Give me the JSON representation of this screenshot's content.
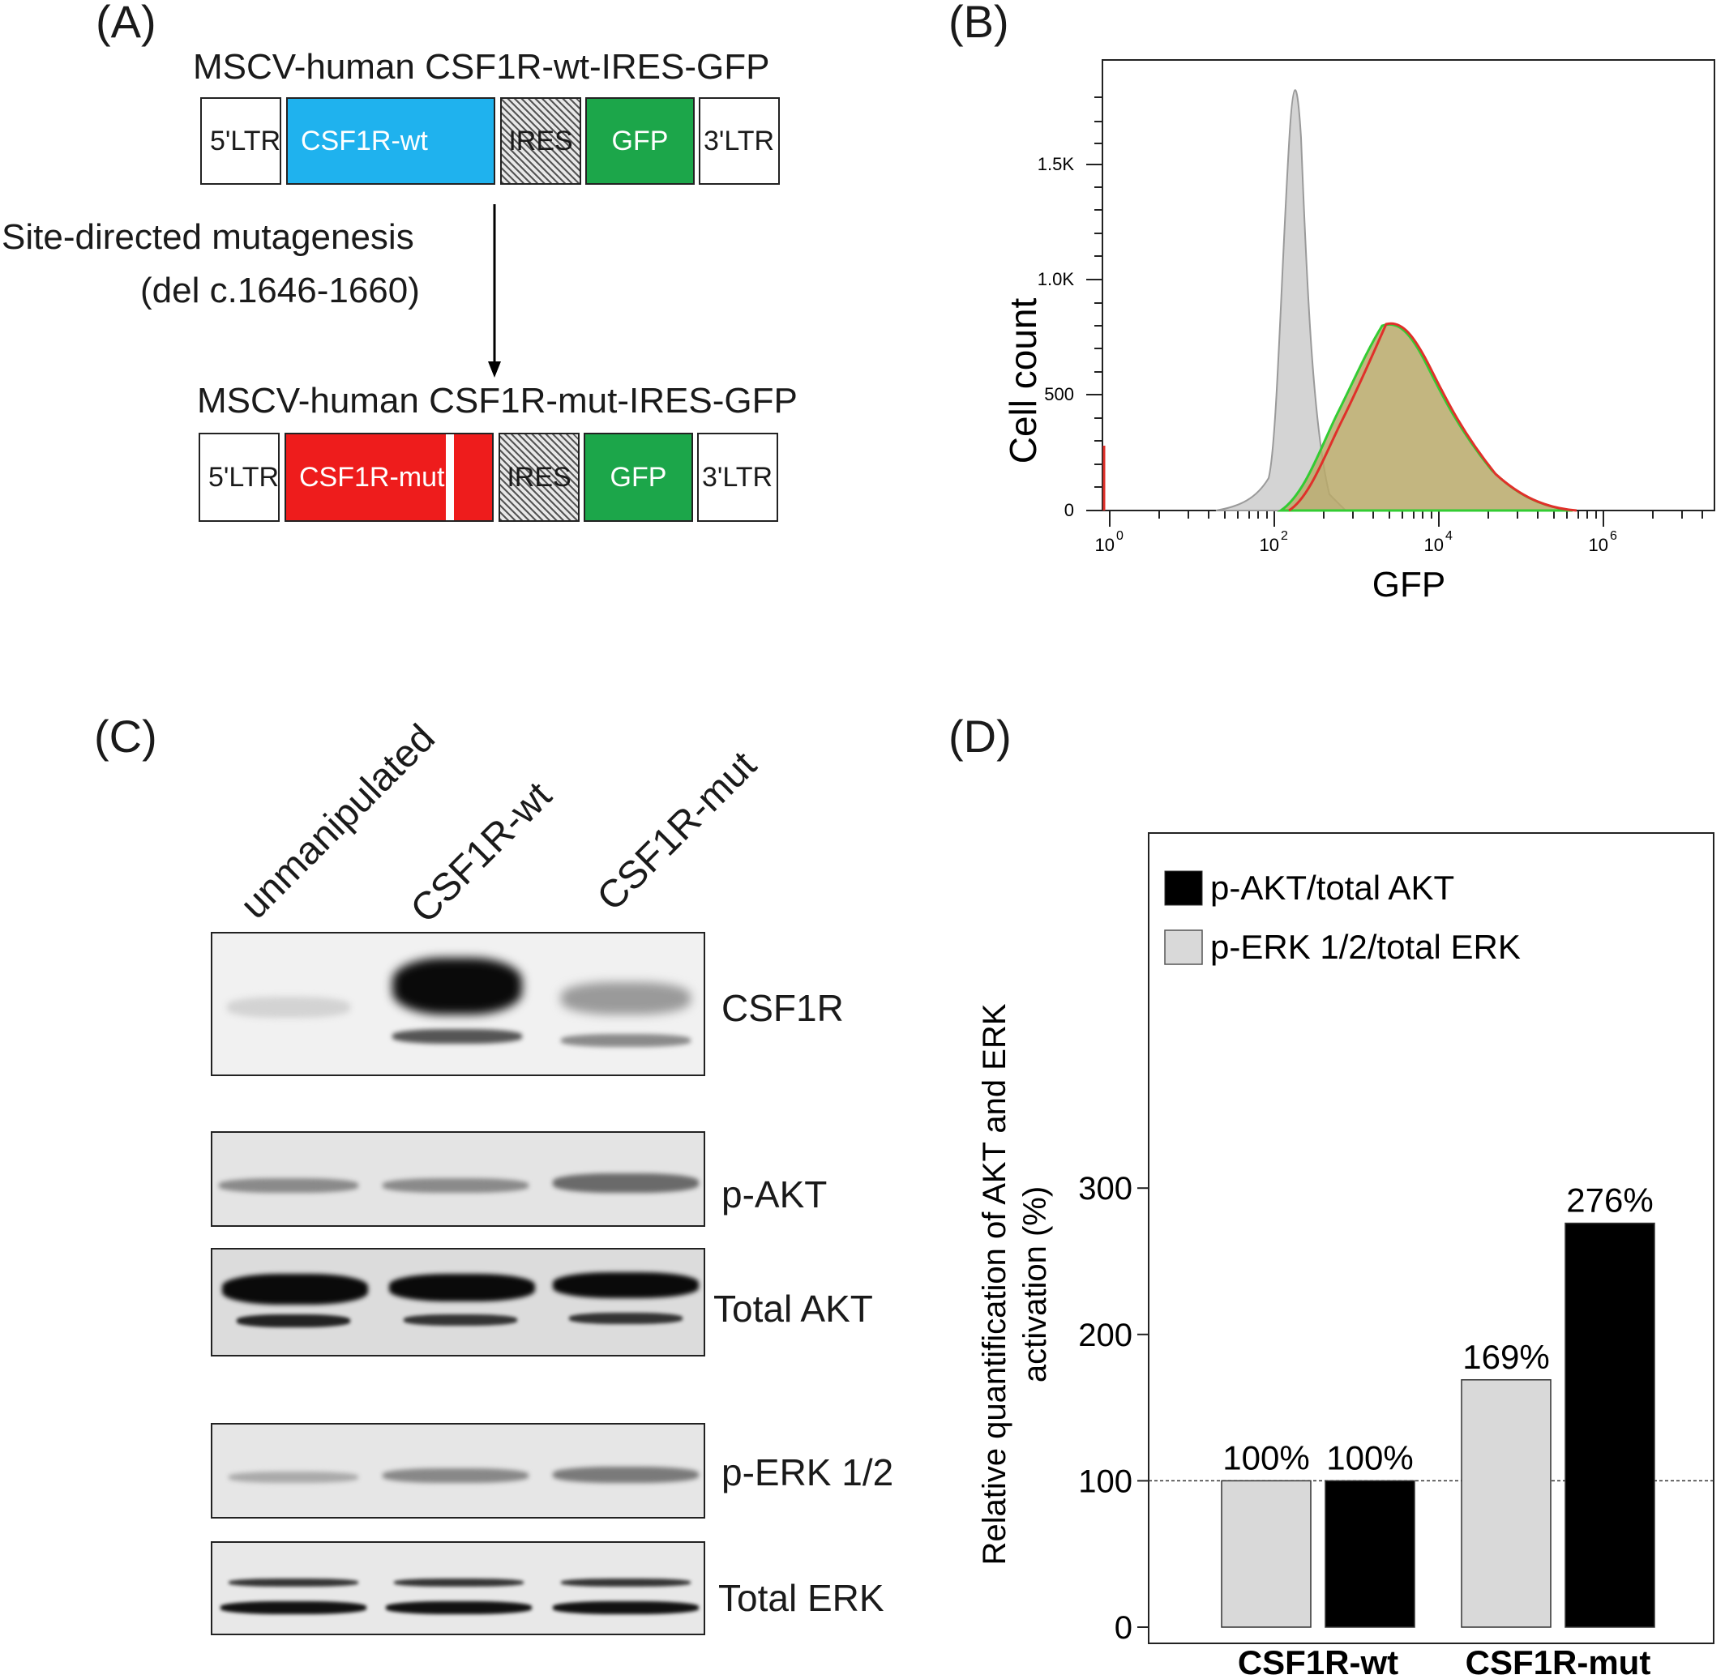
{
  "panels": {
    "a": "(A)",
    "b": "(B)",
    "c": "(C)",
    "d": "(D)"
  },
  "construct_wt": {
    "title": "MSCV-human CSF1R-wt-IRES-GFP",
    "ltr5": "5'LTR",
    "gene": "CSF1R-wt",
    "ires": "IRES",
    "gfp": "GFP",
    "ltr3": "3'LTR"
  },
  "mutagenesis": {
    "line1": "Site-directed mutagenesis",
    "line2": "(del c.1646-1660)"
  },
  "construct_mut": {
    "title": "MSCV-human CSF1R-mut-IRES-GFP",
    "ltr5": "5'LTR",
    "gene": "CSF1R-mut",
    "ires": "IRES",
    "gfp": "GFP",
    "ltr3": "3'LTR"
  },
  "colors": {
    "wt_gene": "#1fb2ee",
    "mut_gene": "#ee1c1c",
    "gfp": "#1ca64a",
    "bar_black": "#000000",
    "bar_gray": "#d9d9d9"
  },
  "flow": {
    "ylabel": "Cell count",
    "xlabel": "GFP",
    "yticks": [
      "0",
      "500",
      "1.0K",
      "1.5K"
    ],
    "xticks": [
      {
        "base": "10",
        "exp": "0"
      },
      {
        "base": "10",
        "exp": "2"
      },
      {
        "base": "10",
        "exp": "4"
      },
      {
        "base": "10",
        "exp": "6"
      }
    ]
  },
  "western": {
    "lanes": [
      "unmanipulated",
      "CSF1R-wt",
      "CSF1R-mut"
    ],
    "blots": [
      "CSF1R",
      "p-AKT",
      "Total AKT",
      "p-ERK 1/2",
      "Total ERK"
    ]
  },
  "chart_data": {
    "type": "bar",
    "categories": [
      "CSF1R-wt",
      "CSF1R-mut"
    ],
    "series": [
      {
        "name": "p-ERK 1/2/total ERK",
        "values": [
          100,
          169
        ],
        "labels": [
          "100%",
          "169%"
        ]
      },
      {
        "name": "p-AKT/total AKT",
        "values": [
          100,
          276
        ],
        "labels": [
          "100%",
          "276%"
        ]
      }
    ],
    "ylabel": "Relative quantification of AKT and ERK activation (%)",
    "ylabel_line1": "Relative quantification of AKT and ERK",
    "ylabel_line2": "activation (%)",
    "ylim": [
      0,
      370
    ],
    "yticks": [
      0,
      100,
      200,
      300
    ],
    "reference_line": 100,
    "legend": "top-left"
  }
}
